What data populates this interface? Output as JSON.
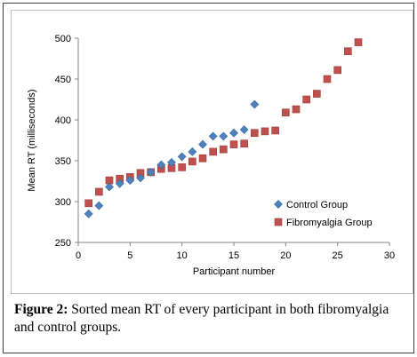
{
  "chart_data": {
    "type": "scatter",
    "xlabel": "Participant number",
    "ylabel": "Mean RT (milliseconds)",
    "xlim": [
      0,
      30
    ],
    "ylim": [
      250,
      500
    ],
    "xticks": [
      "0",
      "5",
      "10",
      "15",
      "20",
      "25",
      "30"
    ],
    "yticks": [
      "250",
      "300",
      "350",
      "400",
      "450",
      "500"
    ],
    "grid": false,
    "legend_position": "bottom-right",
    "series": [
      {
        "name": "Control Group",
        "marker": "diamond",
        "color": "#4f81bd",
        "x": [
          1,
          2,
          3,
          4,
          5,
          6,
          7,
          8,
          9,
          10,
          11,
          12,
          13,
          14,
          15,
          16,
          17
        ],
        "y": [
          285,
          295,
          318,
          322,
          326,
          329,
          336,
          345,
          348,
          355,
          361,
          370,
          380,
          380,
          384,
          388,
          419
        ]
      },
      {
        "name": "Fibromyalgia Group",
        "marker": "square",
        "color": "#c0504d",
        "x": [
          1,
          2,
          3,
          4,
          5,
          6,
          7,
          8,
          9,
          10,
          11,
          12,
          13,
          14,
          15,
          16,
          17,
          18,
          19,
          20,
          21,
          22,
          23,
          24,
          25,
          26,
          27
        ],
        "y": [
          298,
          312,
          326,
          328,
          330,
          335,
          336,
          340,
          341,
          342,
          349,
          353,
          361,
          364,
          370,
          371,
          384,
          386,
          387,
          409,
          413,
          425,
          432,
          450,
          461,
          484,
          495
        ]
      }
    ]
  },
  "caption": {
    "label": "Figure 2:",
    "text": " Sorted mean RT of every participant in both fibromyalgia and control groups."
  }
}
